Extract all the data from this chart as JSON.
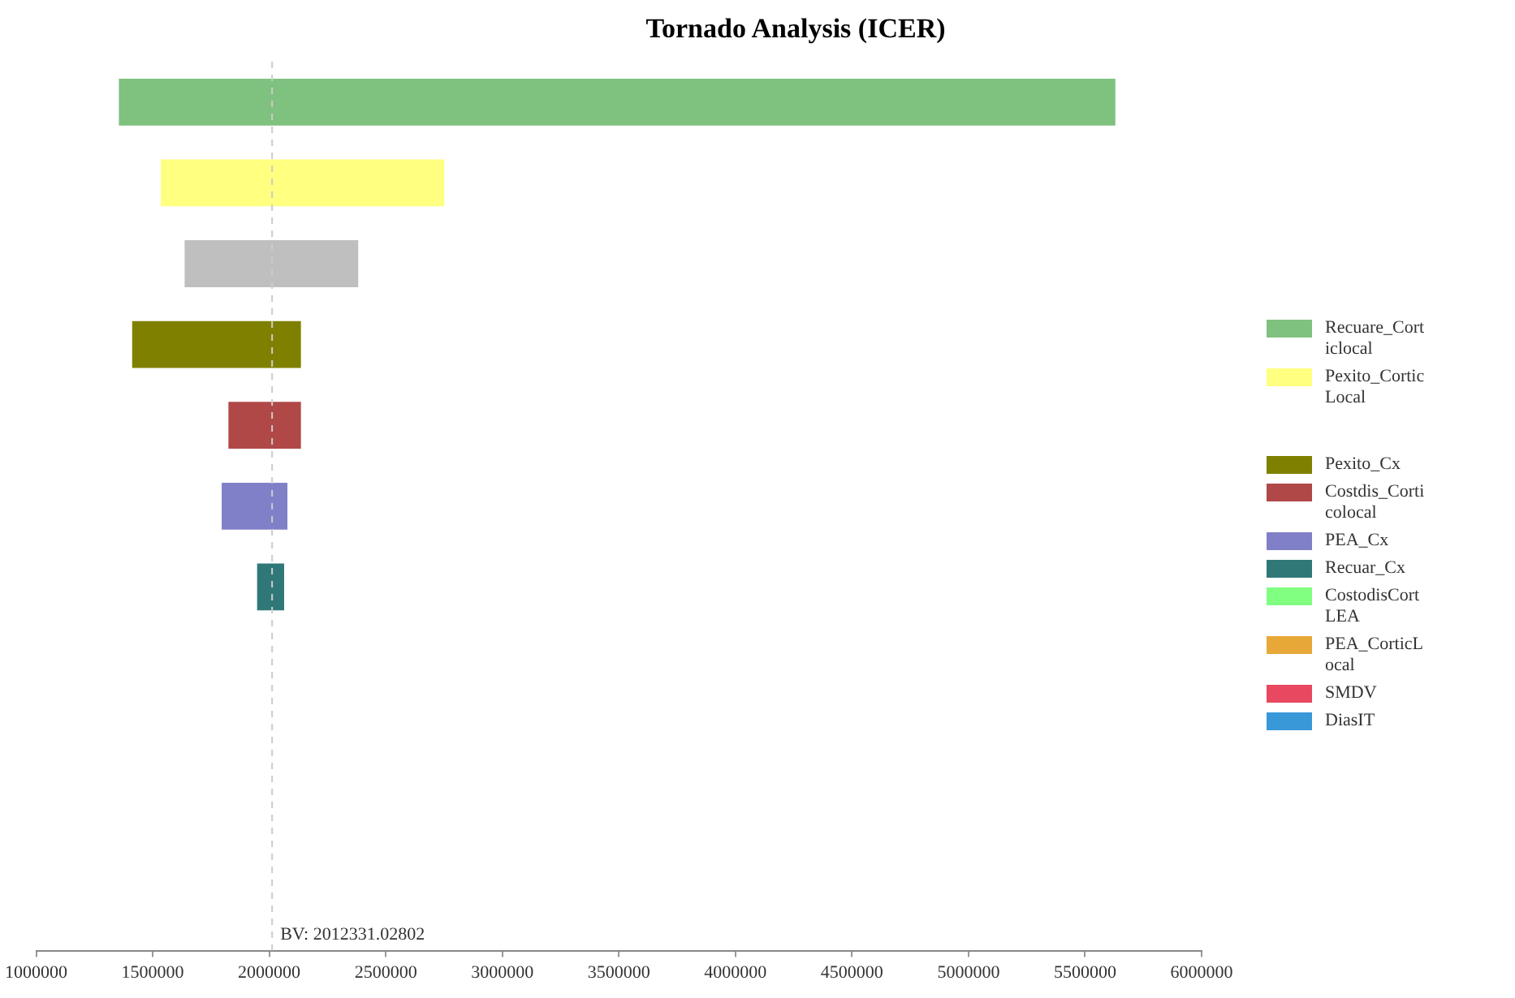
{
  "chart_data": {
    "type": "bar",
    "orientation": "horizontal",
    "title": "Tornado Analysis (ICER)",
    "categories": [
      null,
      null,
      null,
      null,
      null,
      null,
      null,
      null,
      null,
      null,
      null
    ],
    "series": [
      {
        "name": "Recuare_Corticlocal",
        "color": "#7fc17f",
        "values": [
          4275000,
          null,
          null,
          null,
          null,
          null,
          null,
          null,
          null,
          null,
          null
        ],
        "base": [
          1355000,
          null,
          null,
          null,
          null,
          null,
          null,
          null,
          null,
          null,
          null
        ]
      },
      {
        "name": "Pexito_CorticLocal",
        "color": "#ffff80",
        "values": [
          null,
          1216000,
          null,
          null,
          null,
          null,
          null,
          null,
          null,
          null,
          null
        ],
        "base": [
          null,
          1535000,
          null,
          null,
          null,
          null,
          null,
          null,
          null,
          null,
          null
        ]
      },
      {
        "color": "#bfbfbf",
        "values": [
          null,
          null,
          745000,
          null,
          null,
          null,
          null,
          null,
          null,
          null,
          null
        ],
        "base": [
          null,
          null,
          1637000,
          null,
          null,
          null,
          null,
          null,
          null,
          null,
          null
        ]
      },
      {
        "name": "Pexito_Cx",
        "color": "#808000",
        "values": [
          null,
          null,
          null,
          724000,
          null,
          null,
          null,
          null,
          null,
          null,
          null
        ],
        "base": [
          null,
          null,
          null,
          1412000,
          null,
          null,
          null,
          null,
          null,
          null,
          null
        ]
      },
      {
        "name": "Costdis_Corticolocal",
        "color": "#b04848",
        "values": [
          null,
          null,
          null,
          null,
          311000,
          null,
          null,
          null,
          null,
          null,
          null
        ],
        "base": [
          null,
          null,
          null,
          null,
          1825000,
          null,
          null,
          null,
          null,
          null,
          null
        ]
      },
      {
        "name": "PEA_Cx",
        "color": "#8080c8",
        "values": [
          null,
          null,
          null,
          null,
          null,
          282000,
          null,
          null,
          null,
          null,
          null
        ],
        "base": [
          null,
          null,
          null,
          null,
          null,
          1796000,
          null,
          null,
          null,
          null,
          null
        ]
      },
      {
        "name": "Recuar_Cx",
        "color": "#307878",
        "values": [
          null,
          null,
          null,
          null,
          null,
          null,
          116000,
          null,
          null,
          null,
          null
        ],
        "base": [
          null,
          null,
          null,
          null,
          null,
          null,
          1948000,
          null,
          null,
          null,
          null
        ]
      },
      {
        "name": "CostodisCortLEA",
        "color": "#80ff80",
        "values": [
          null,
          null,
          null,
          null,
          null,
          null,
          null,
          null,
          null,
          null,
          null
        ],
        "base": [
          null,
          null,
          null,
          null,
          null,
          null,
          null,
          null,
          null,
          null,
          null
        ]
      },
      {
        "name": "PEA_CorticLocal",
        "color": "#e8a838",
        "values": [
          null,
          null,
          null,
          null,
          null,
          null,
          null,
          null,
          null,
          null,
          null
        ],
        "base": [
          null,
          null,
          null,
          null,
          null,
          null,
          null,
          null,
          null,
          null,
          null
        ]
      },
      {
        "name": "SMDV",
        "color": "#e84860",
        "values": [
          null,
          null,
          null,
          null,
          null,
          null,
          null,
          null,
          null,
          null,
          null
        ],
        "base": [
          null,
          null,
          null,
          null,
          null,
          null,
          null,
          null,
          null,
          null,
          null
        ]
      },
      {
        "name": "DiasIT",
        "color": "#3898d8",
        "values": [
          null,
          null,
          null,
          null,
          null,
          null,
          null,
          null,
          null,
          null,
          null
        ],
        "base": [
          null,
          null,
          null,
          null,
          null,
          null,
          null,
          null,
          null,
          null,
          null
        ]
      }
    ],
    "xlim": [
      1000000,
      6000000
    ],
    "xticks": [
      1000000,
      1500000,
      2000000,
      2500000,
      3000000,
      3500000,
      4000000,
      4500000,
      5000000,
      5500000,
      6000000
    ],
    "ref_lines": [
      {
        "axis": "x",
        "value": 2012331.02802,
        "label": "BV: 2012331.02802",
        "color": "#cccccc",
        "line_style": "dashed"
      }
    ],
    "grid": false,
    "legend": "right",
    "tick_labels": "x"
  }
}
